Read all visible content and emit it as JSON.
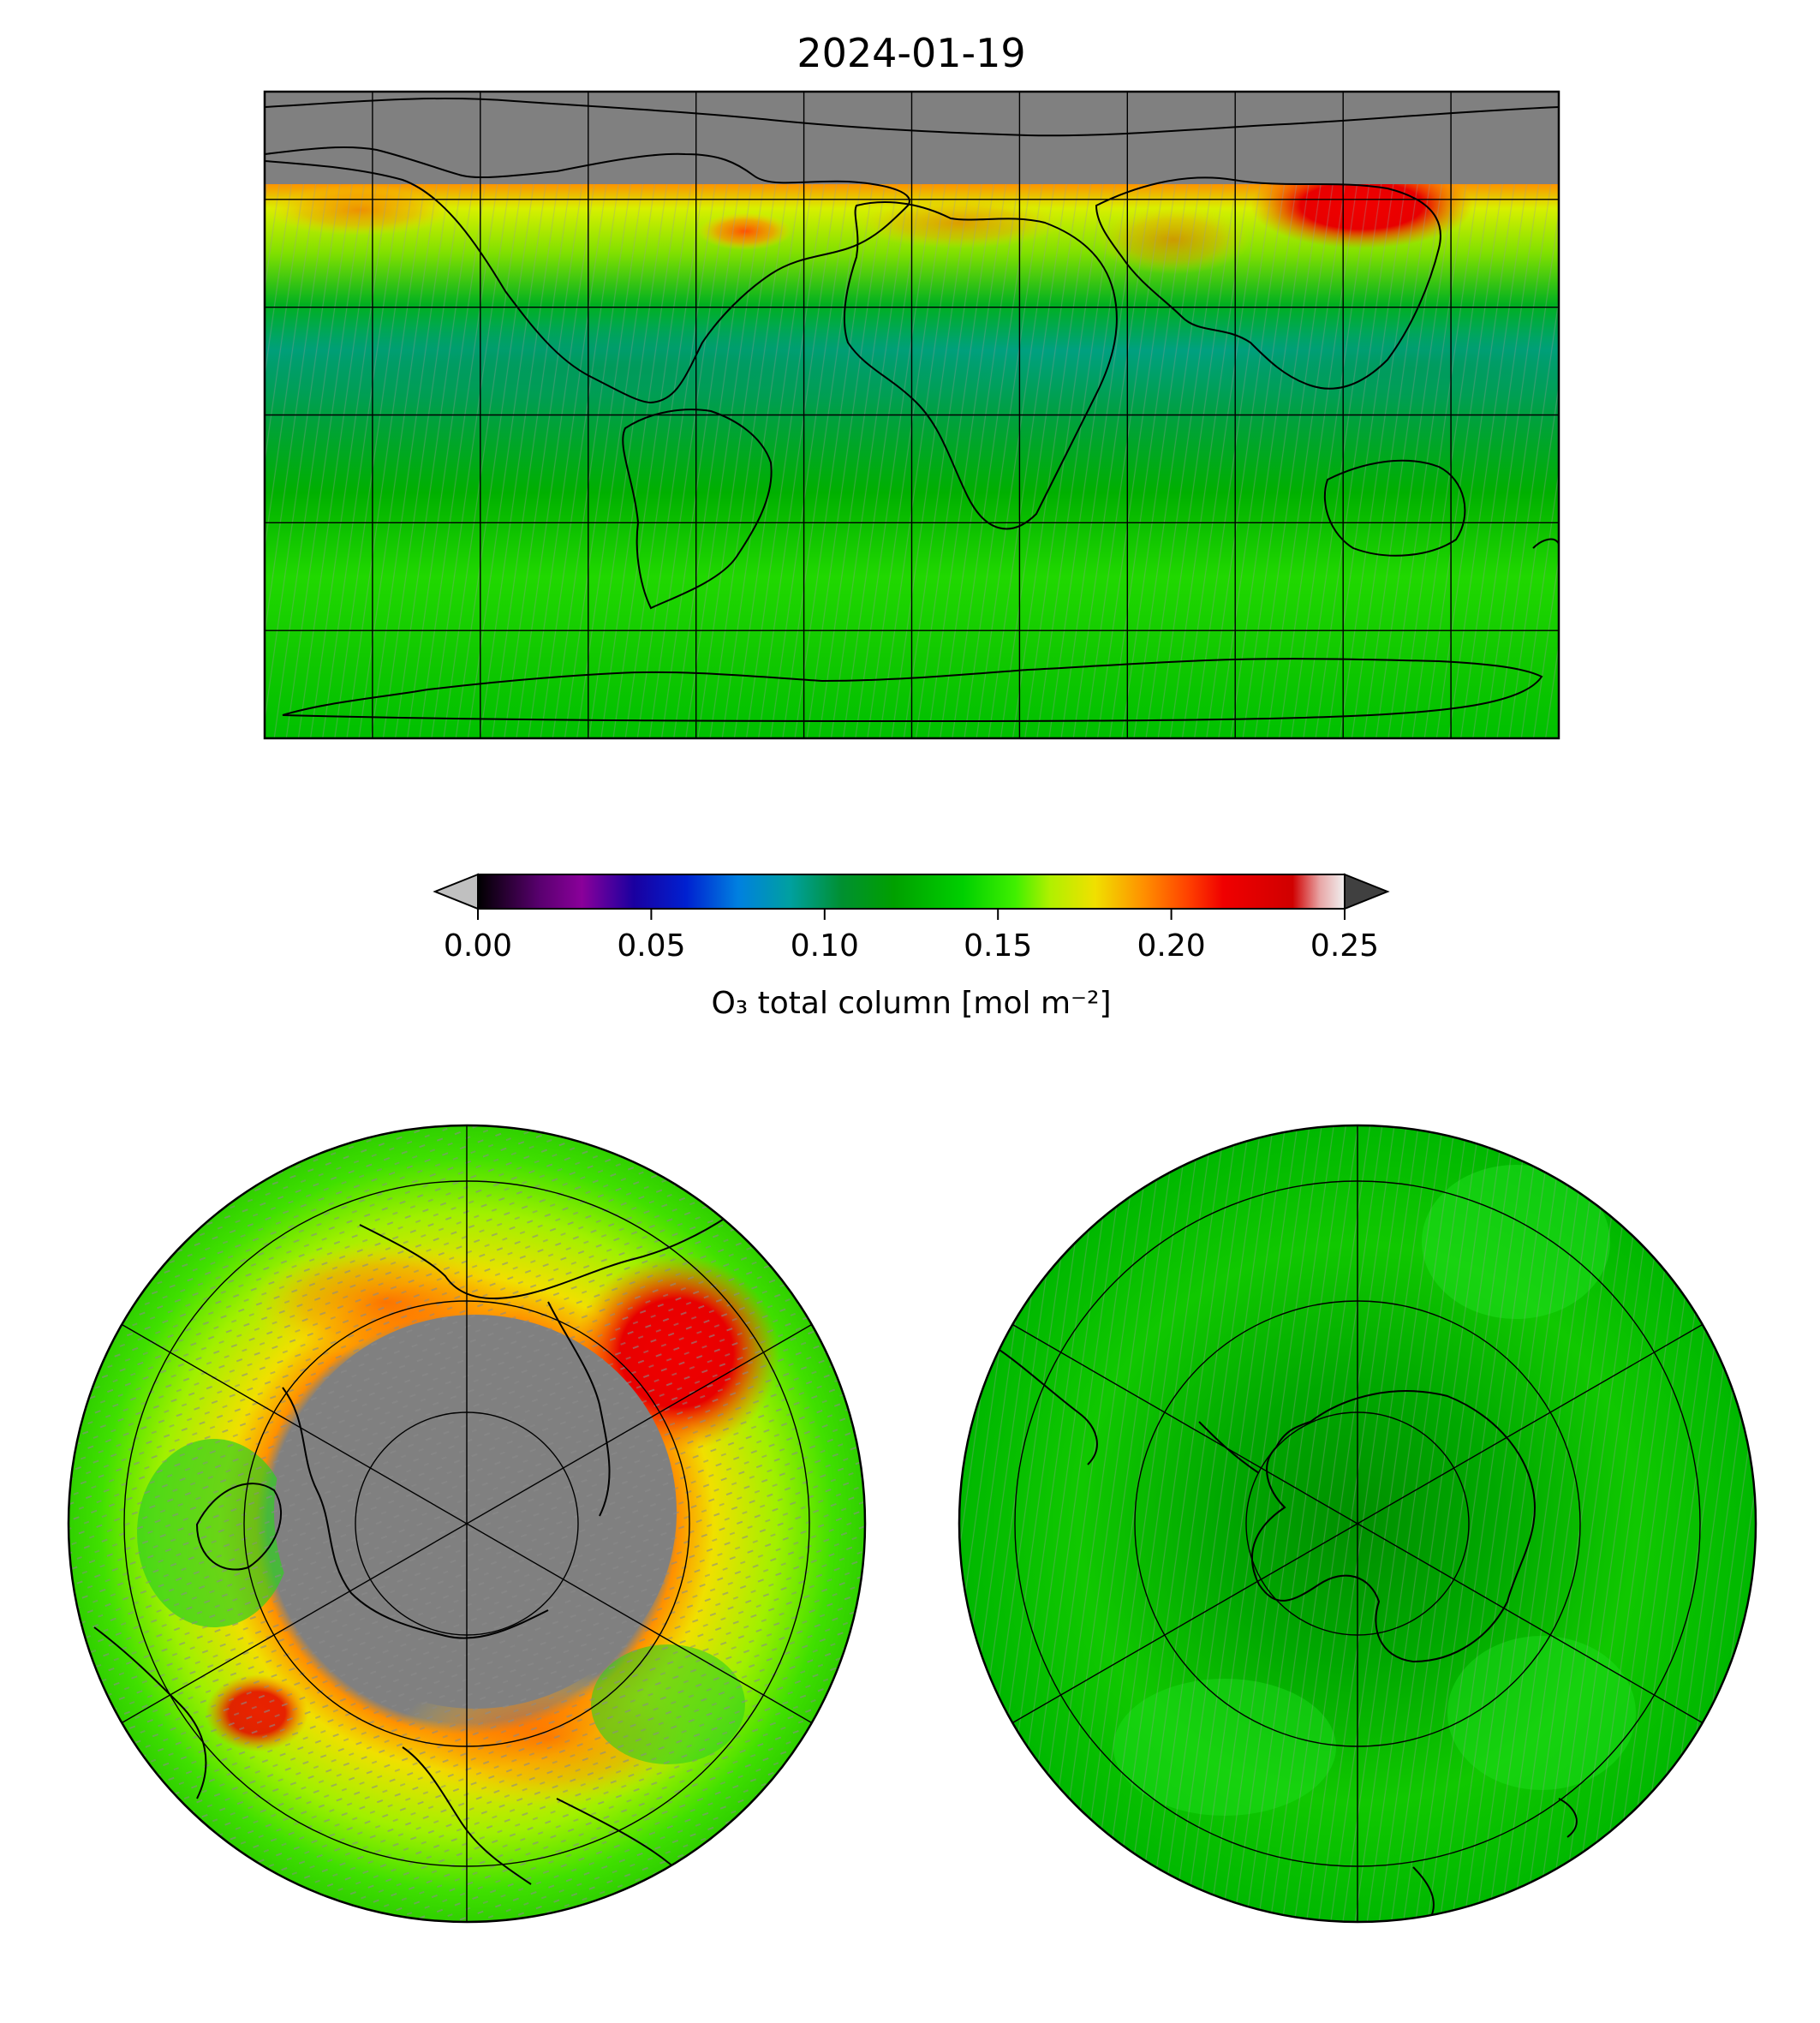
{
  "title": "2024-01-19",
  "colorbar": {
    "label": "O₃ total column [mol m⁻²]",
    "ticks": [
      "0.00",
      "0.05",
      "0.10",
      "0.15",
      "0.20",
      "0.25"
    ],
    "tick_values": [
      0.0,
      0.05,
      0.1,
      0.15,
      0.2,
      0.25
    ],
    "range": [
      0.0,
      0.25
    ],
    "extend": "both",
    "under_color": "#c0c0c0",
    "over_color": "#404040",
    "stops": [
      {
        "v": 0.0,
        "c": "#000000"
      },
      {
        "v": 0.018,
        "c": "#5a0070"
      },
      {
        "v": 0.03,
        "c": "#8a009a"
      },
      {
        "v": 0.045,
        "c": "#1a00a0"
      },
      {
        "v": 0.06,
        "c": "#0020d0"
      },
      {
        "v": 0.075,
        "c": "#0080e0"
      },
      {
        "v": 0.09,
        "c": "#00a0a0"
      },
      {
        "v": 0.105,
        "c": "#009030"
      },
      {
        "v": 0.12,
        "c": "#00a000"
      },
      {
        "v": 0.14,
        "c": "#00d000"
      },
      {
        "v": 0.155,
        "c": "#40f000"
      },
      {
        "v": 0.165,
        "c": "#b0f000"
      },
      {
        "v": 0.178,
        "c": "#f0e000"
      },
      {
        "v": 0.192,
        "c": "#ff9000"
      },
      {
        "v": 0.205,
        "c": "#ff4000"
      },
      {
        "v": 0.215,
        "c": "#f00000"
      },
      {
        "v": 0.235,
        "c": "#d00000"
      },
      {
        "v": 0.243,
        "c": "#e8a8a8"
      },
      {
        "v": 0.25,
        "c": "#f0f0f0"
      }
    ]
  },
  "map_colors": {
    "missing": "#808080",
    "coast": "#000000",
    "grid": "#000000"
  },
  "panels": [
    {
      "name": "global-map",
      "projection": "plate-carree"
    },
    {
      "name": "north-polar-map",
      "projection": "north-polar-stereographic"
    },
    {
      "name": "south-polar-map",
      "projection": "south-polar-stereographic"
    }
  ]
}
